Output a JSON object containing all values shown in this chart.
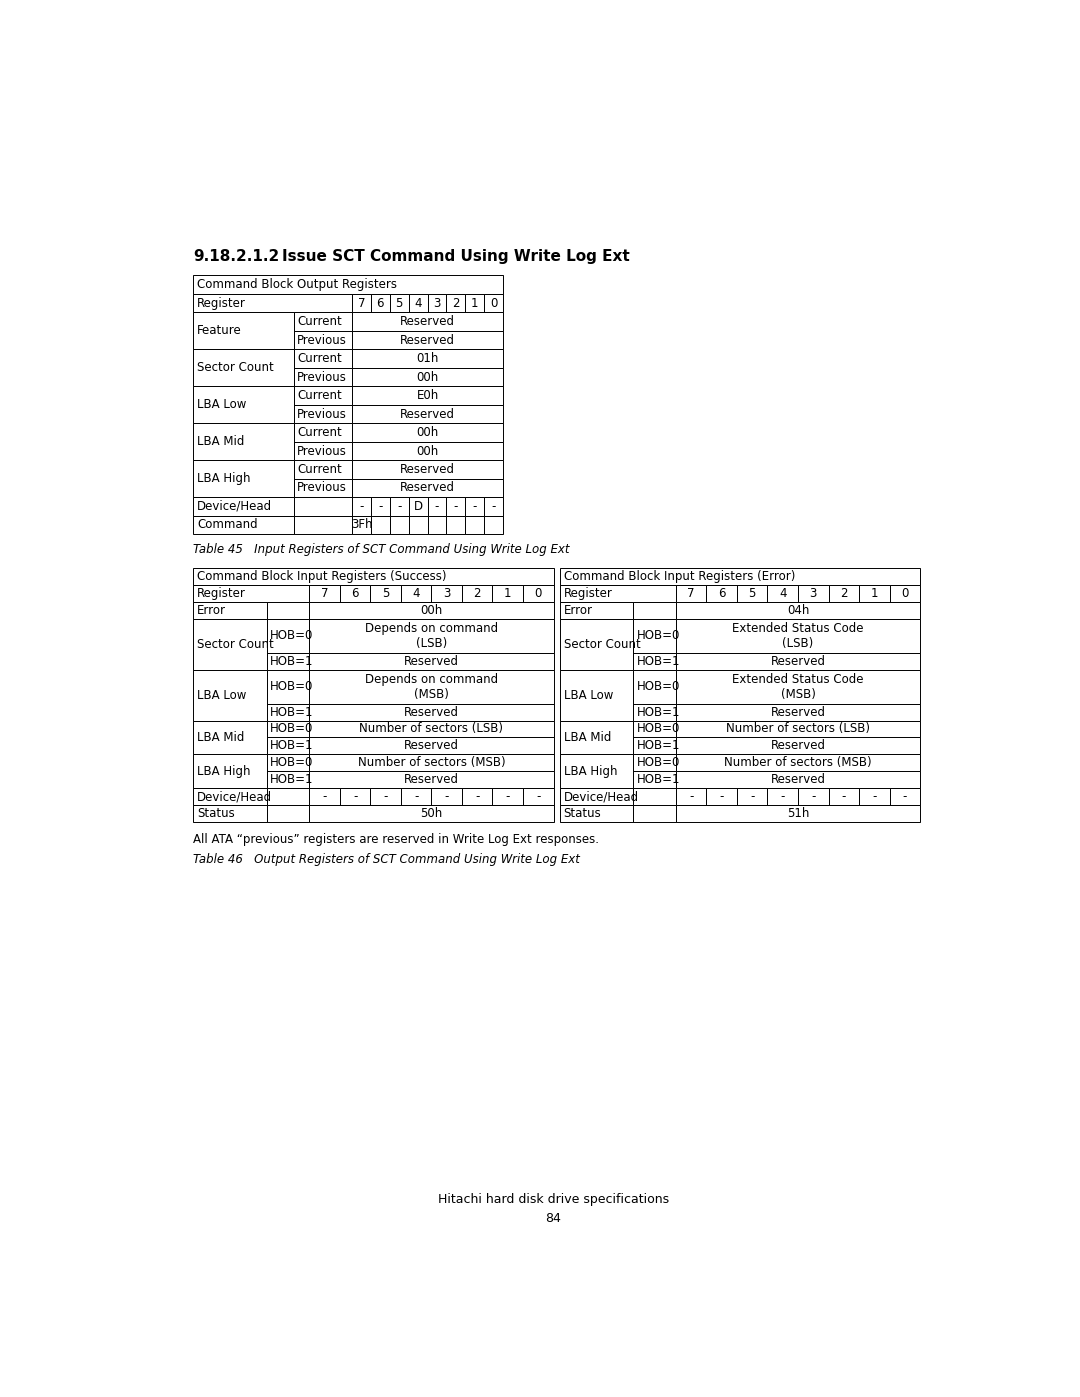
{
  "title_num": "9.18.2.1.2",
  "title_text": "Issue SCT Command Using Write Log Ext",
  "table1_header": "Command Block Output Registers",
  "table1_rows": [
    [
      "Feature",
      "Current",
      "Reserved"
    ],
    [
      "",
      "Previous",
      "Reserved"
    ],
    [
      "Sector Count",
      "Current",
      "01h"
    ],
    [
      "",
      "Previous",
      "00h"
    ],
    [
      "LBA Low",
      "Current",
      "E0h"
    ],
    [
      "",
      "Previous",
      "Reserved"
    ],
    [
      "LBA Mid",
      "Current",
      "00h"
    ],
    [
      "",
      "Previous",
      "00h"
    ],
    [
      "LBA High",
      "Current",
      "Reserved"
    ],
    [
      "",
      "Previous",
      "Reserved"
    ],
    [
      "Device/Head",
      "",
      [
        "-",
        "-",
        "-",
        "D",
        "-",
        "-",
        "-",
        "-"
      ]
    ],
    [
      "Command",
      "",
      "3Fh"
    ]
  ],
  "table_caption": "Table 45   Input Registers of SCT Command Using Write Log Ext",
  "table2_left_header": "Command Block Input Registers (Success)",
  "table2_right_header": "Command Block Input Registers (Error)",
  "table2_left_rows": [
    [
      "Error",
      "",
      "00h"
    ],
    [
      "Sector Count",
      "HOB=0",
      "Depends on command\n(LSB)"
    ],
    [
      "",
      "HOB=1",
      "Reserved"
    ],
    [
      "LBA Low",
      "HOB=0",
      "Depends on command\n(MSB)"
    ],
    [
      "",
      "HOB=1",
      "Reserved"
    ],
    [
      "LBA Mid",
      "HOB=0",
      "Number of sectors (LSB)"
    ],
    [
      "",
      "HOB=1",
      "Reserved"
    ],
    [
      "LBA High",
      "HOB=0",
      "Number of sectors (MSB)"
    ],
    [
      "",
      "HOB=1",
      "Reserved"
    ],
    [
      "Device/Head",
      "",
      [
        "-",
        "-",
        "-",
        "-",
        "-",
        "-",
        "-",
        "-"
      ]
    ],
    [
      "Status",
      "",
      "50h"
    ]
  ],
  "table2_right_rows": [
    [
      "Error",
      "",
      "04h"
    ],
    [
      "Sector Count",
      "HOB=0",
      "Extended Status Code\n(LSB)"
    ],
    [
      "",
      "HOB=1",
      "Reserved"
    ],
    [
      "LBA Low",
      "HOB=0",
      "Extended Status Code\n(MSB)"
    ],
    [
      "",
      "HOB=1",
      "Reserved"
    ],
    [
      "LBA Mid",
      "HOB=0",
      "Number of sectors (LSB)"
    ],
    [
      "",
      "HOB=1",
      "Reserved"
    ],
    [
      "LBA High",
      "HOB=0",
      "Number of sectors (MSB)"
    ],
    [
      "",
      "HOB=1",
      "Reserved"
    ],
    [
      "Device/Head",
      "",
      [
        "-",
        "-",
        "-",
        "-",
        "-",
        "-",
        "-",
        "-"
      ]
    ],
    [
      "Status",
      "",
      "51h"
    ]
  ],
  "note_text": "All ATA “previous” registers are reserved in Write Log Ext responses.",
  "table3_caption": "Table 46   Output Registers of SCT Command Using Write Log Ext",
  "footer_line1": "Hitachi hard disk drive specifications",
  "footer_line2": "84",
  "bg_color": "#ffffff"
}
